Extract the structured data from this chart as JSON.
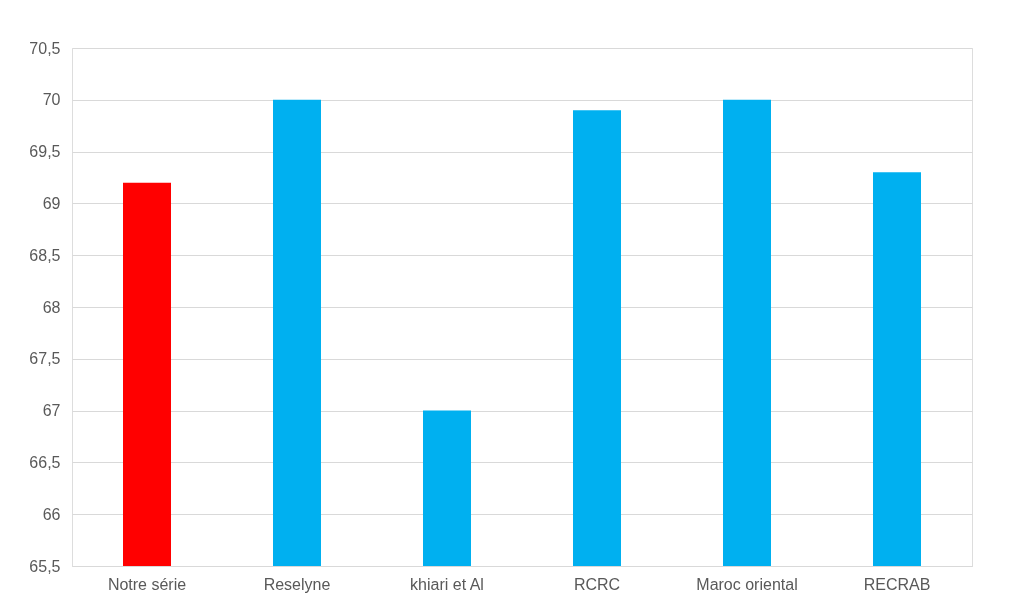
{
  "chart_data": {
    "type": "bar",
    "categories": [
      "Notre série",
      "Reselyne",
      "khiari et Al",
      "RCRC",
      "Maroc oriental",
      "RECRAB"
    ],
    "values": [
      69.2,
      70,
      67,
      69.9,
      70,
      69.3
    ],
    "colors": [
      "#ff0000",
      "#00b0f0",
      "#00b0f0",
      "#00b0f0",
      "#00b0f0",
      "#00b0f0"
    ],
    "ylim": [
      65.5,
      70.5
    ],
    "yticks": [
      {
        "value": 65.5,
        "label": "65,5"
      },
      66,
      {
        "value": 66.5,
        "label": "66,5"
      },
      67,
      {
        "value": 67.5,
        "label": "67,5"
      },
      68,
      {
        "value": 68.5,
        "label": "68,5"
      },
      69,
      {
        "value": 69.5,
        "label": "69,5"
      },
      70,
      {
        "value": 70.5,
        "label": "70,5"
      }
    ],
    "grid": "y"
  }
}
